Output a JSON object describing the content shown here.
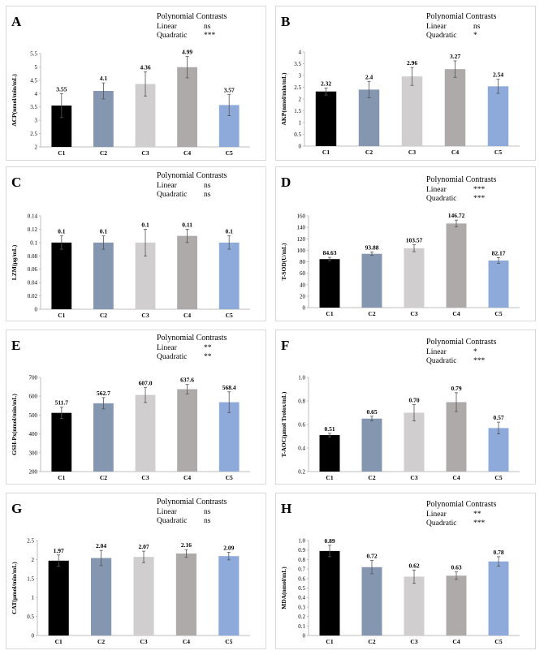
{
  "colors": [
    "#000000",
    "#8496b0",
    "#d0cece",
    "#aeaaaa",
    "#8eaadb"
  ],
  "chart_data": [
    {
      "type": "bar",
      "letter": "A",
      "ylabel": "ACP(nmol/min/mL)",
      "categories": [
        "C1",
        "C2",
        "C3",
        "C4",
        "C5"
      ],
      "values": [
        3.55,
        4.1,
        4.36,
        4.99,
        3.57
      ],
      "value_labels": [
        "3.55",
        "4.1",
        "4.36",
        "4.99",
        "3.57"
      ],
      "errors": [
        0.45,
        0.3,
        0.45,
        0.4,
        0.4
      ],
      "ylim": [
        2,
        5.5
      ],
      "yticks": [
        "2",
        "2.5",
        "3",
        "3.5",
        "4",
        "4.5",
        "5",
        "5.5"
      ],
      "contrast_title": "Polynomial Contrasts",
      "contrasts": [
        {
          "name": "Linear",
          "sig": "ns"
        },
        {
          "name": "Quadratic",
          "sig": "***"
        }
      ]
    },
    {
      "type": "bar",
      "letter": "B",
      "ylabel": "AKP(nmol/min/mL)",
      "categories": [
        "C1",
        "C2",
        "C3",
        "C4",
        "C5"
      ],
      "values": [
        2.32,
        2.4,
        2.96,
        3.27,
        2.54
      ],
      "value_labels": [
        "2.32",
        "2.4",
        "2.96",
        "3.27",
        "2.54"
      ],
      "errors": [
        0.15,
        0.35,
        0.38,
        0.35,
        0.3
      ],
      "ylim": [
        0,
        4
      ],
      "yticks": [
        "0",
        "0.5",
        "1",
        "1.5",
        "2",
        "2.5",
        "3",
        "3.5",
        "4"
      ],
      "contrast_title": "Polynomial Contrasts",
      "contrasts": [
        {
          "name": "Linear",
          "sig": "ns"
        },
        {
          "name": "Quadratic",
          "sig": "*"
        }
      ]
    },
    {
      "type": "bar",
      "letter": "C",
      "ylabel": "LZM(μg/mL)",
      "categories": [
        "C1",
        "C2",
        "C3",
        "C4",
        "C5"
      ],
      "values": [
        0.1,
        0.1,
        0.1,
        0.11,
        0.1
      ],
      "value_labels": [
        "0.1",
        "0.1",
        "0.1",
        "0.11",
        "0.1"
      ],
      "errors": [
        0.01,
        0.01,
        0.02,
        0.01,
        0.01
      ],
      "ylim": [
        0,
        0.14
      ],
      "yticks": [
        "0",
        "0.02",
        "0.04",
        "0.06",
        "0.08",
        "0.1",
        "0.12",
        "0.14"
      ],
      "contrast_title": "Polynomial Contrasts",
      "contrasts": [
        {
          "name": "Linear",
          "sig": "ns"
        },
        {
          "name": "Quadratic",
          "sig": "ns"
        }
      ]
    },
    {
      "type": "bar",
      "letter": "D",
      "ylabel": "T-SOD(U/mL)",
      "categories": [
        "C1",
        "C2",
        "C3",
        "C4",
        "C5"
      ],
      "values": [
        84.63,
        93.88,
        103.57,
        146.72,
        82.17
      ],
      "value_labels": [
        "84.63",
        "93.88",
        "103.57",
        "146.72",
        "82.17"
      ],
      "errors": [
        3,
        3,
        6,
        6,
        5
      ],
      "ylim": [
        0,
        160
      ],
      "yticks": [
        "0",
        "20",
        "40",
        "60",
        "80",
        "100",
        "120",
        "140",
        "160"
      ],
      "contrast_title": "Polynomial Contrasts",
      "contrasts": [
        {
          "name": "Linear",
          "sig": "***"
        },
        {
          "name": "Quadratic",
          "sig": "***"
        }
      ]
    },
    {
      "type": "bar",
      "letter": "E",
      "ylabel": "GSH-Px(nmol/min/mL)",
      "categories": [
        "C1",
        "C2",
        "C3",
        "C4",
        "C5"
      ],
      "values": [
        511.7,
        562.7,
        607.0,
        637.6,
        568.4
      ],
      "value_labels": [
        "511.7",
        "562.7",
        "607.0",
        "637.6",
        "568.4"
      ],
      "errors": [
        30,
        30,
        40,
        25,
        55
      ],
      "ylim": [
        200,
        700
      ],
      "yticks": [
        "200",
        "300",
        "400",
        "500",
        "600",
        "700"
      ],
      "contrast_title": "Polynomial Contrasts",
      "contrasts": [
        {
          "name": "Linear",
          "sig": "**"
        },
        {
          "name": "Quadratic",
          "sig": "**"
        }
      ]
    },
    {
      "type": "bar",
      "letter": "F",
      "ylabel": "T-AOC(μmol Trolox/mL)",
      "categories": [
        "C1",
        "C2",
        "C3",
        "C4",
        "C5"
      ],
      "values": [
        0.51,
        0.65,
        0.7,
        0.79,
        0.57
      ],
      "value_labels": [
        "0.51",
        "0.65",
        "0.70",
        "0.79",
        "0.57"
      ],
      "errors": [
        0.015,
        0.02,
        0.07,
        0.08,
        0.05
      ],
      "ylim": [
        0.2,
        1.0
      ],
      "yticks": [
        "0.2",
        "0.4",
        "0.6",
        "0.8",
        "1.0"
      ],
      "contrast_title": "Polynomial Contrasts",
      "contrasts": [
        {
          "name": "Linear",
          "sig": "*"
        },
        {
          "name": "Quadratic",
          "sig": "***"
        }
      ]
    },
    {
      "type": "bar",
      "letter": "G",
      "ylabel": "CAT(μmol/min/mL)",
      "categories": [
        "C1",
        "C2",
        "C3",
        "C4",
        "C5"
      ],
      "values": [
        1.97,
        2.04,
        2.07,
        2.16,
        2.09
      ],
      "value_labels": [
        "1.97",
        "2.04",
        "2.07",
        "2.16",
        "2.09"
      ],
      "errors": [
        0.15,
        0.2,
        0.15,
        0.1,
        0.1
      ],
      "ylim": [
        0,
        2.5
      ],
      "yticks": [
        "0",
        "0.5",
        "1",
        "1.5",
        "2",
        "2.5"
      ],
      "contrast_title": "Polynomial Contrasts",
      "contrasts": [
        {
          "name": "Linear",
          "sig": "ns"
        },
        {
          "name": "Quadratic",
          "sig": "ns"
        }
      ]
    },
    {
      "type": "bar",
      "letter": "H",
      "ylabel": "MDA(nmol/mL)",
      "categories": [
        "C1",
        "C2",
        "C3",
        "C4",
        "C5"
      ],
      "values": [
        0.89,
        0.72,
        0.62,
        0.63,
        0.78
      ],
      "value_labels": [
        "0.89",
        "0.72",
        "0.62",
        "0.63",
        "0.78"
      ],
      "errors": [
        0.06,
        0.07,
        0.07,
        0.04,
        0.05
      ],
      "ylim": [
        0,
        1.0
      ],
      "yticks": [
        "0",
        "0.1",
        "0.2",
        "0.3",
        "0.4",
        "0.5",
        "0.6",
        "0.7",
        "0.8",
        "0.9",
        "1.0"
      ],
      "contrast_title": "Polynomial Contrasts",
      "contrasts": [
        {
          "name": "Linear",
          "sig": "**"
        },
        {
          "name": "Quadratic",
          "sig": "***"
        }
      ]
    }
  ]
}
